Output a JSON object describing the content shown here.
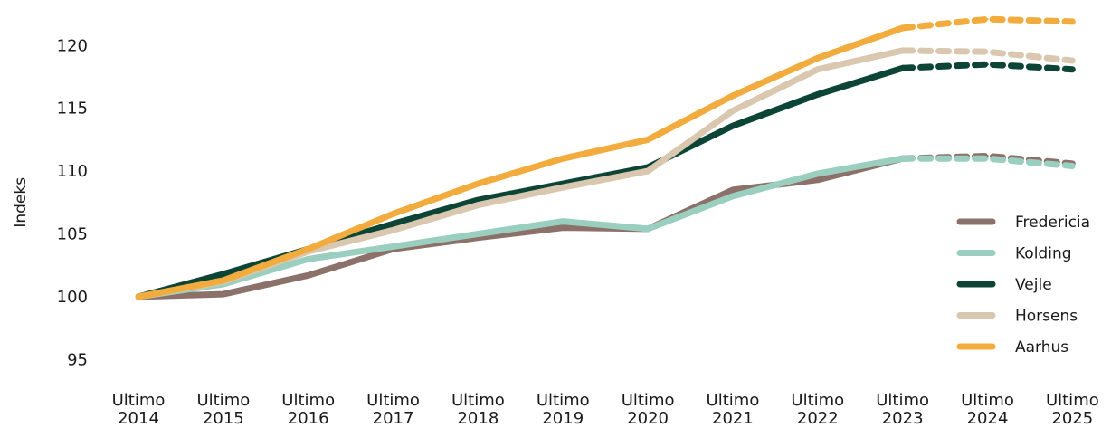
{
  "chart_data": {
    "type": "line",
    "title": "",
    "xlabel": "",
    "ylabel": "Indeks",
    "ylim": [
      95,
      122.5
    ],
    "yticks": [
      95,
      100,
      105,
      110,
      115,
      120
    ],
    "grid": false,
    "legend_position": "right",
    "categories": [
      [
        "Ultimo",
        "2014"
      ],
      [
        "Ultimo",
        "2015"
      ],
      [
        "Ultimo",
        "2016"
      ],
      [
        "Ultimo",
        "2017"
      ],
      [
        "Ultimo",
        "2018"
      ],
      [
        "Ultimo",
        "2019"
      ],
      [
        "Ultimo",
        "2020"
      ],
      [
        "Ultimo",
        "2021"
      ],
      [
        "Ultimo",
        "2022"
      ],
      [
        "Ultimo",
        "2023"
      ],
      [
        "Ultimo",
        "2024"
      ],
      [
        "Ultimo",
        "2025"
      ]
    ],
    "forecast_from_index": 9,
    "series": [
      {
        "name": "Fredericia",
        "color": "#8c706a",
        "values": [
          100,
          100.2,
          101.7,
          103.8,
          104.7,
          105.5,
          105.4,
          108.5,
          109.3,
          111.0,
          111.2,
          110.6
        ]
      },
      {
        "name": "Kolding",
        "color": "#9acfbf",
        "values": [
          100,
          101.0,
          103.0,
          104.0,
          105.0,
          106.0,
          105.4,
          108.0,
          109.8,
          111.0,
          111.0,
          110.4
        ]
      },
      {
        "name": "Vejle",
        "color": "#0c4436",
        "values": [
          100,
          101.8,
          103.8,
          105.8,
          107.7,
          109.0,
          110.3,
          113.6,
          116.1,
          118.2,
          118.5,
          118.1
        ]
      },
      {
        "name": "Horsens",
        "color": "#d9c7b0",
        "values": [
          100,
          101.2,
          103.6,
          105.3,
          107.3,
          108.7,
          110.0,
          114.8,
          118.1,
          119.6,
          119.5,
          118.8
        ]
      },
      {
        "name": "Aarhus",
        "color": "#f2ac3d",
        "values": [
          100,
          101.3,
          103.8,
          106.6,
          109.0,
          111.0,
          112.5,
          116.0,
          119.0,
          121.4,
          122.1,
          121.9
        ]
      }
    ]
  }
}
